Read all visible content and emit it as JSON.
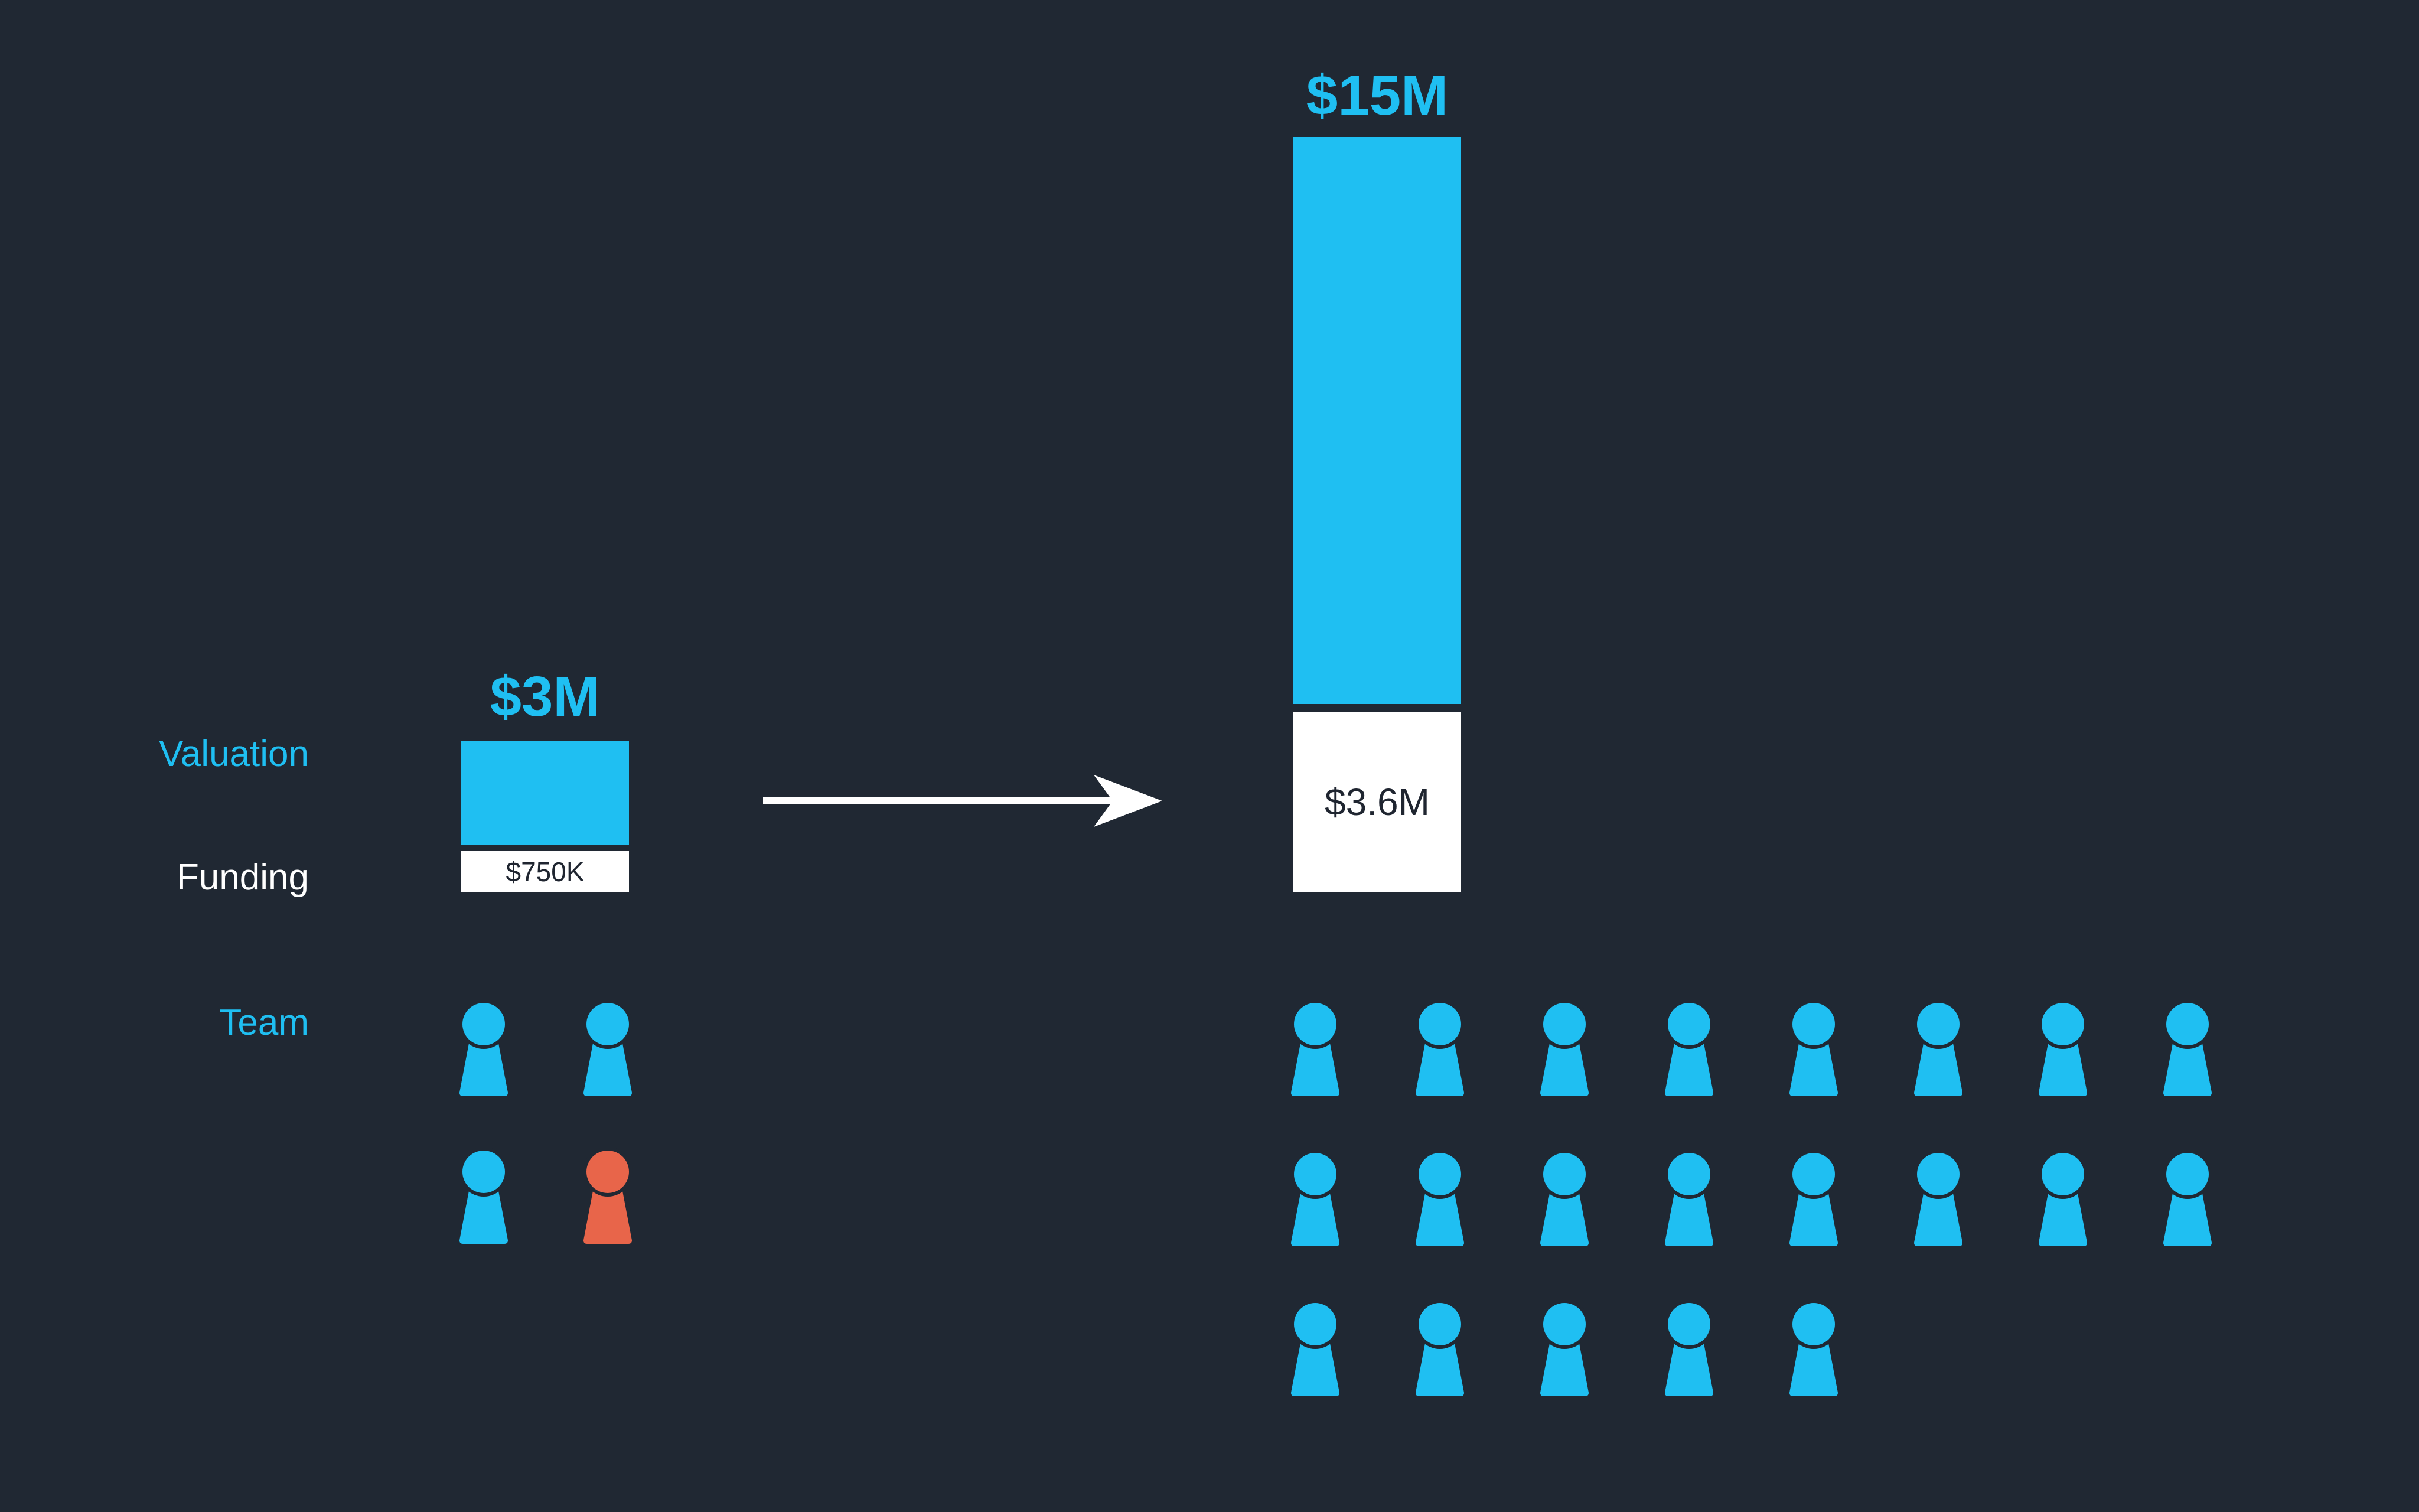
{
  "labels": {
    "valuation": "Valuation",
    "funding": "Funding",
    "team": "Team"
  },
  "before": {
    "valuation_label": "$3M",
    "funding_label": "$750K",
    "team_size": 4,
    "highlighted_members": 1
  },
  "after": {
    "valuation_label": "$15M",
    "funding_label": "$3.6M",
    "team_size": 21,
    "highlighted_members": 0
  },
  "colors": {
    "background": "#202833",
    "valuation": "#1fbff2",
    "funding": "#ffffff",
    "member": "#1fbff2",
    "highlighted_member": "#e8654a"
  },
  "icons": [
    "person-icon",
    "arrow-right-icon"
  ]
}
